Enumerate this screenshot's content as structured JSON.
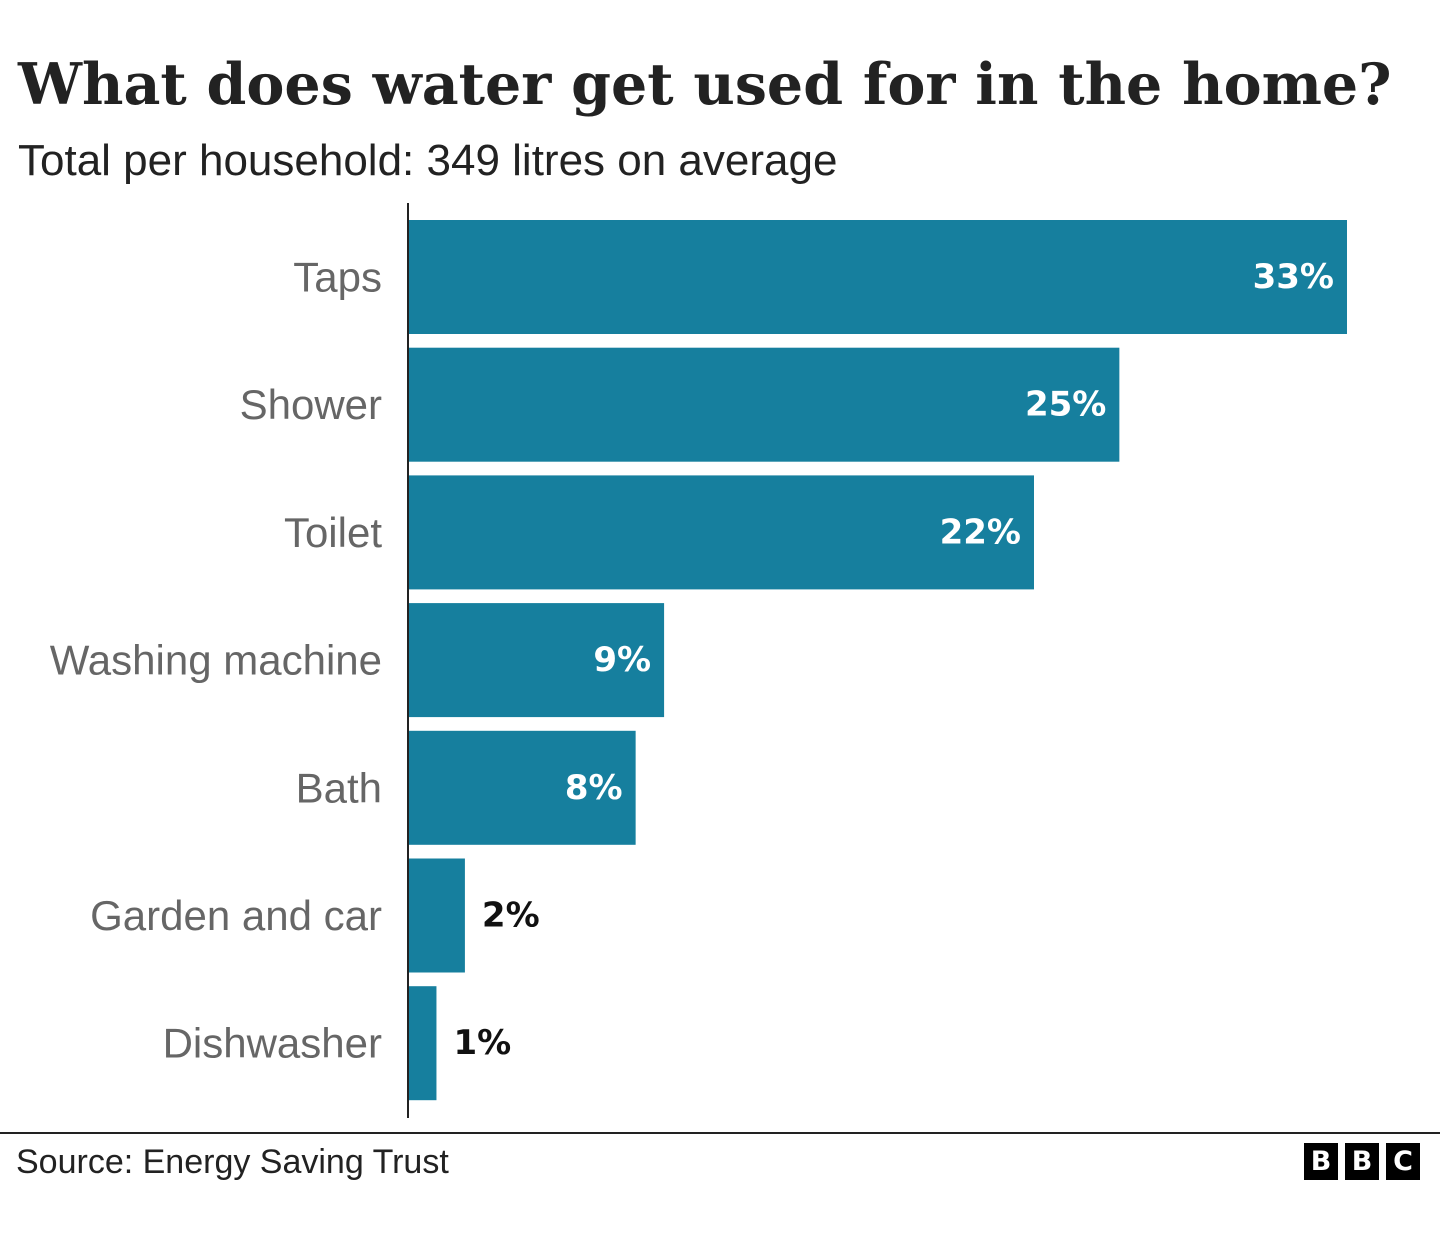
{
  "title": "What does water get used for in the home?",
  "subtitle": "Total per household: 349 litres on average",
  "source": "Source: Energy Saving Trust",
  "logo": {
    "letters": [
      "B",
      "B",
      "C"
    ]
  },
  "colors": {
    "bar": "#167F9E",
    "label_inside": "#ffffff",
    "label_outside": "#111111",
    "category_text": "#666666",
    "axis": "#222222"
  },
  "chart_data": {
    "type": "bar",
    "orientation": "horizontal",
    "categories": [
      "Taps",
      "Shower",
      "Toilet",
      "Washing machine",
      "Bath",
      "Garden and car",
      "Dishwasher"
    ],
    "values": [
      33,
      25,
      22,
      9,
      8,
      2,
      1
    ],
    "data_labels": [
      "33%",
      "25%",
      "22%",
      "9%",
      "8%",
      "2%",
      "1%"
    ],
    "unit": "%",
    "title": "What does water get used for in the home?",
    "subtitle": "Total per household: 349 litres on average",
    "xlim": [
      0,
      33
    ],
    "grid": false,
    "legend": "none"
  }
}
